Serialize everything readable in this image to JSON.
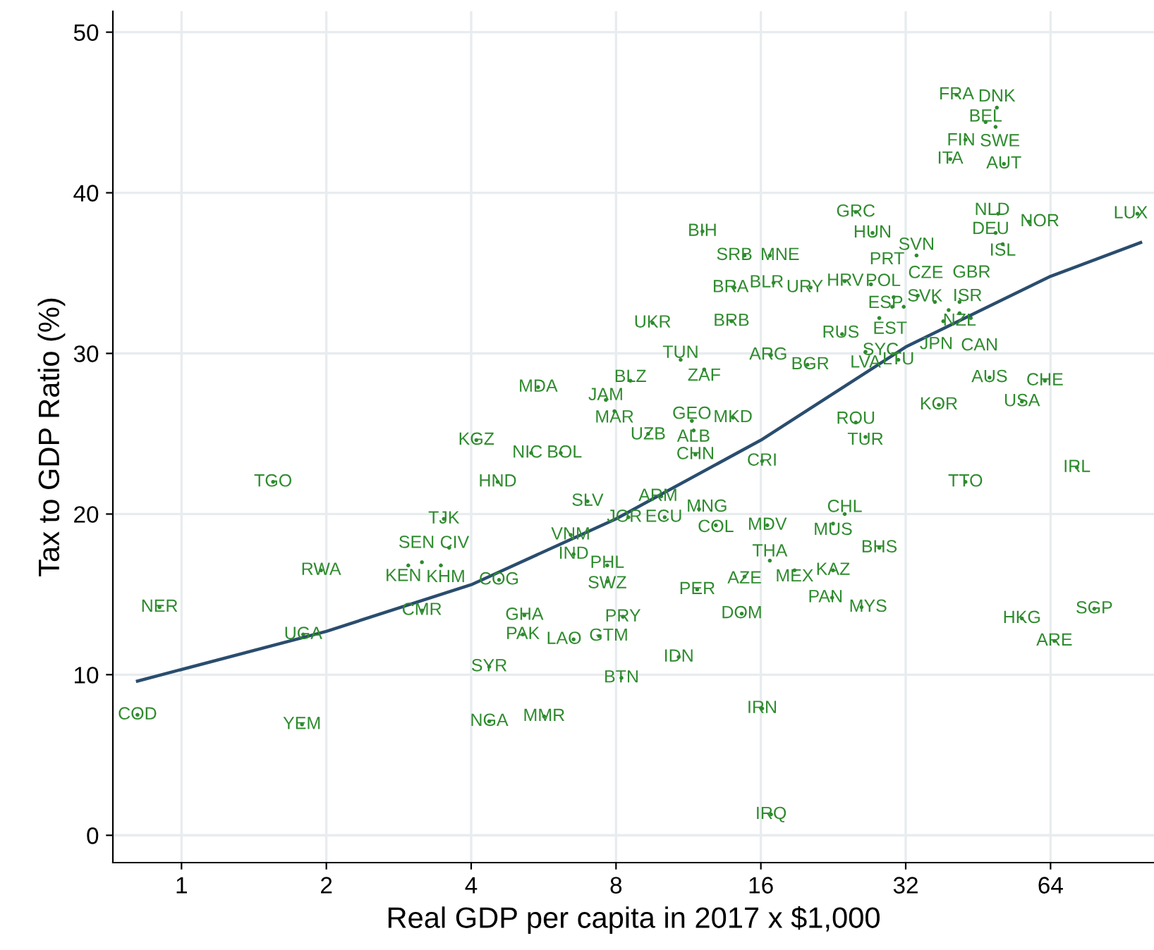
{
  "chart_data": {
    "type": "scatter",
    "xlabel": "Real GDP per capita in 2017 x $1,000",
    "ylabel": "Tax to GDP Ratio (%)",
    "log": "x",
    "xlim": [
      0.72,
      105
    ],
    "xticks": [
      1,
      2,
      4,
      8,
      16,
      32,
      64
    ],
    "ylim": [
      -1.7,
      51.3
    ],
    "yticks": [
      0,
      10,
      20,
      30,
      40,
      50
    ],
    "grid": true,
    "series": [
      {
        "marker": "circle",
        "color": "#2e8b2e",
        "value_labels": [
          "FRA",
          "DNK",
          "BEL",
          "SWE",
          "FIN",
          "ITA",
          "AUT",
          "NLD",
          "NOR",
          "DEU",
          "ISL",
          "LUX",
          "GRC",
          "HUN",
          "SVN",
          "BIH",
          "SRB",
          "MNE",
          "BRA",
          "BLR",
          "URY",
          "HRV",
          "PRT",
          "POL",
          "CZE",
          "ESP",
          "EST",
          "SVK",
          "GBR",
          "ISR",
          "NZL",
          "JPN",
          "CAN",
          "SYC",
          "RUS",
          "LVA",
          "LTU",
          "UKR",
          "BRB",
          "TUN",
          "ZAF",
          "ARG",
          "BGR",
          "MDA",
          "BLZ",
          "JAM",
          "MAR",
          "GEO",
          "MKD",
          "UZB",
          "ALB",
          "ROU",
          "TUR",
          "KOR",
          "AUS",
          "CHE",
          "USA",
          "KGZ",
          "NIC",
          "BOL",
          "CHN",
          "CRI",
          "HND",
          "TGO",
          "TTO",
          "IRL",
          "TJK",
          "SLV",
          "ARM",
          "JOR",
          "ECU",
          "MNG",
          "COL",
          "MDV",
          "MUS",
          "CHL",
          "BHS",
          "CIV",
          "KEN",
          "SEN",
          "KHM",
          "RWA",
          "VNM",
          "IND",
          "PHL",
          "SWZ",
          "COG",
          "THA",
          "MEX",
          "KAZ",
          "AZE",
          "PER",
          "PAN",
          "MYS",
          "DOM",
          "HKG",
          "SGP",
          "ARE",
          "CMR",
          "NER",
          "UGA",
          "GHA",
          "PAK",
          "PRY",
          "LAO",
          "GTM",
          "IDN",
          "SYR",
          "BTN",
          "IRN",
          "COD",
          "YEM",
          "NGA",
          "MMR",
          "IRQ"
        ],
        "x": [
          40.8,
          49.5,
          46.9,
          49.2,
          42.6,
          39.6,
          51.2,
          49.8,
          57.7,
          49.2,
          50.9,
          97,
          25.2,
          27.3,
          33.7,
          12.1,
          14.8,
          16.7,
          14.1,
          17.0,
          20.3,
          23.9,
          27.1,
          30.2,
          33.9,
          31.7,
          30.0,
          36.8,
          41.4,
          39.3,
          41.4,
          38.3,
          43.7,
          28.2,
          23.6,
          26.4,
          30.9,
          9.53,
          13.9,
          10.9,
          12.2,
          16.8,
          20.0,
          5.51,
          8.57,
          7.62,
          7.94,
          11.5,
          14.0,
          9.33,
          11.6,
          25.2,
          26.4,
          37.5,
          47.8,
          62.3,
          55.8,
          4.1,
          5.33,
          6.14,
          11.7,
          16.1,
          4.54,
          1.55,
          42.6,
          72.6,
          3.51,
          6.98,
          9.93,
          8.49,
          10.1,
          11.9,
          12.9,
          16.5,
          22.6,
          23.9,
          28.2,
          3.6,
          2.96,
          3.16,
          3.46,
          1.95,
          6.44,
          6.53,
          7.67,
          7.67,
          4.57,
          16.7,
          18.8,
          22.6,
          14.8,
          11.8,
          22.5,
          25.9,
          14.6,
          55.8,
          78.9,
          65.2,
          3.16,
          0.9,
          1.79,
          5.16,
          5.12,
          8.27,
          6.53,
          7.38,
          10.8,
          4.36,
          8.21,
          16.1,
          0.81,
          1.78,
          4.36,
          5.67,
          16.8
        ],
        "values": [
          46.1,
          45.3,
          44.4,
          44.1,
          43.3,
          42.1,
          41.8,
          38.7,
          38.2,
          37.5,
          36.8,
          38.7,
          38.8,
          37.5,
          36.1,
          37.6,
          36.1,
          36.1,
          34.1,
          34.4,
          34.1,
          34.5,
          34.3,
          33.5,
          33.6,
          32.9,
          32.9,
          33.2,
          33.2,
          32.7,
          32.5,
          32.0,
          32.2,
          32.2,
          31.2,
          30.1,
          29.6,
          31.9,
          32.0,
          29.6,
          29.0,
          29.9,
          29.3,
          27.9,
          28.3,
          27.1,
          26.4,
          25.8,
          26.0,
          25.0,
          25.2,
          25.7,
          24.8,
          26.8,
          28.5,
          28.3,
          27.0,
          24.6,
          23.8,
          23.8,
          23.7,
          23.3,
          22.0,
          22.0,
          22.0,
          22.9,
          19.7,
          20.8,
          21.1,
          19.8,
          19.8,
          20.3,
          19.3,
          19.3,
          19.4,
          20.0,
          17.9,
          17.9,
          16.8,
          17.0,
          16.8,
          16.5,
          18.7,
          17.5,
          16.8,
          15.8,
          15.9,
          17.1,
          16.5,
          16.5,
          16.1,
          15.3,
          14.8,
          14.2,
          13.8,
          13.5,
          14.1,
          12.1,
          14.0,
          14.2,
          12.5,
          13.7,
          12.5,
          13.6,
          12.2,
          12.4,
          11.1,
          10.5,
          9.8,
          7.9,
          7.5,
          6.9,
          7.1,
          7.4,
          1.3
        ]
      },
      {
        "type": "line",
        "color": "#2a4d6e",
        "line_style": "solid",
        "marker": "none",
        "x": [
          0.81,
          2,
          4,
          8,
          16,
          32,
          64,
          98.5
        ],
        "values": [
          9.6,
          12.7,
          15.6,
          19.7,
          24.6,
          30.4,
          34.8,
          36.9
        ]
      }
    ]
  }
}
